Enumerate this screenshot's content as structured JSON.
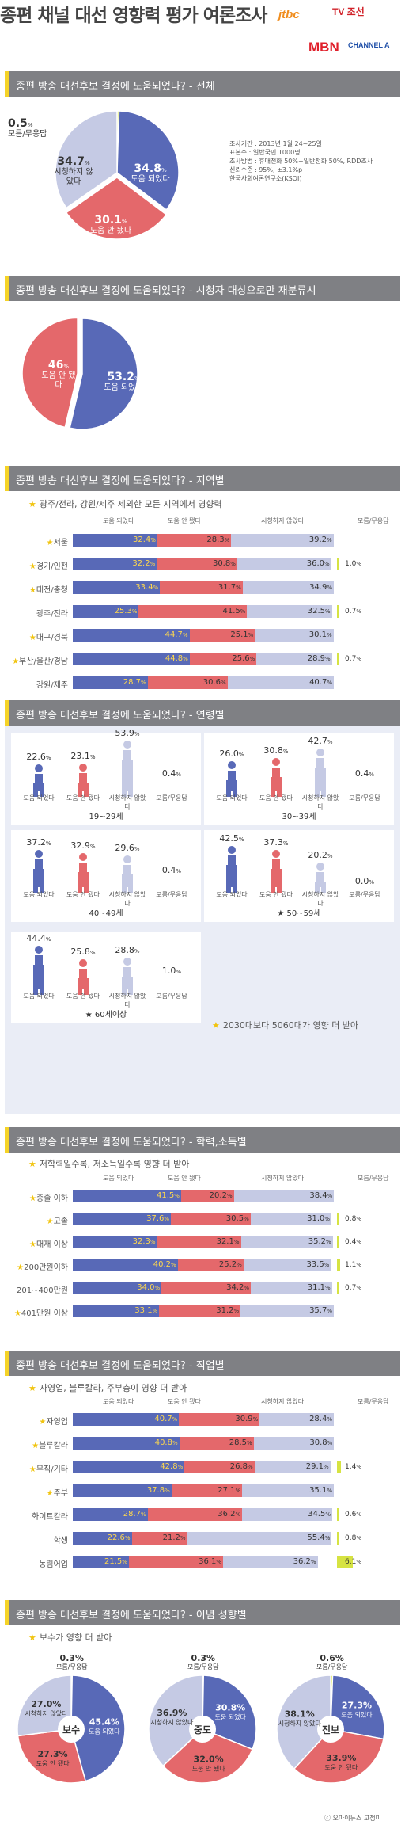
{
  "title": "종편 채널 대선 영향력 평가 여론조사",
  "logos": [
    "jtbc",
    "TV 조선",
    "MBN",
    "CHANNEL A"
  ],
  "colors": {
    "helped": "#5869b7",
    "not_helped": "#e4686b",
    "not_watched": "#c5cae4",
    "dont_know": "#d6e342",
    "star": "#f1c40f"
  },
  "survey_info": [
    "조사기간 : 2013년 1월 24~25일",
    "표본수 : 일반국민 1000명",
    "조사방법 : 휴대전화 50%+일반전화 50%, RDD조사",
    "신뢰수준 : 95%, ±3.1%p",
    "한국사회여론연구소(KSOI)"
  ],
  "legend_headers": [
    "도움 되었다",
    "도움 안 됐다",
    "시청하지 않았다",
    "모름/무응답"
  ],
  "credit": "ⓒ 오마이뉴스 고정미",
  "sections": [
    "종편 방송 대선후보 결정에 도움되었다? - 전체",
    "종편 방송 대선후보 결정에 도움되었다? - 시청자 대상으로만 재분류시",
    "종편 방송 대선후보 결정에 도움되었다? - 지역별",
    "종편 방송 대선후보 결정에 도움되었다? - 연령별",
    "종편 방송 대선후보 결정에 도움되었다? - 학력,소득별",
    "종편 방송 대선후보 결정에 도움되었다? - 직업별",
    "종편 방송 대선후보 결정에 도움되었다? - 이념 성향별"
  ],
  "notes": {
    "region": "광주/전라, 강원/제주 제외한 모든 지역에서 영향력",
    "age": "2030대보다 5060대가 영향 더 받아",
    "edu": "저학력일수록, 저소득일수록 영향 더 받아",
    "job": "자영업, 블루칼라, 주부층이 영향 더 받아",
    "ideology": "보수가 영향 더 받아"
  },
  "chart_data": [
    {
      "type": "pie",
      "title": "종편 방송 대선후보 결정에 도움되었다? - 전체",
      "categories": [
        "도움 되었다",
        "도움 안 됐다",
        "시청하지 않았다",
        "모름/무응답"
      ],
      "values": [
        34.8,
        30.1,
        34.7,
        0.5
      ]
    },
    {
      "type": "pie",
      "title": "종편 방송 대선후보 결정에 도움되었다? - 시청자 대상으로만 재분류시",
      "categories": [
        "도움 되었다",
        "도움 안 됐다"
      ],
      "values": [
        53.2,
        46.0
      ]
    },
    {
      "type": "bar",
      "stacked": true,
      "title": "종편 방송 대선후보 결정에 도움되었다? - 지역별",
      "categories": [
        "서울",
        "경기/인천",
        "대전/충청",
        "광주/전라",
        "대구/경북",
        "부산/울산/경남",
        "강원/제주"
      ],
      "starred": [
        true,
        true,
        true,
        false,
        true,
        true,
        false
      ],
      "series": [
        {
          "name": "도움 되었다",
          "values": [
            32.4,
            32.2,
            33.4,
            25.3,
            44.7,
            44.8,
            28.7
          ]
        },
        {
          "name": "도움 안 됐다",
          "values": [
            28.3,
            30.8,
            31.7,
            41.5,
            25.1,
            25.6,
            30.6
          ]
        },
        {
          "name": "시청하지 않았다",
          "values": [
            39.2,
            36.0,
            34.9,
            32.5,
            30.1,
            28.9,
            40.7
          ]
        },
        {
          "name": "모름/무응답",
          "values": [
            0,
            1.0,
            0,
            0.7,
            0,
            0.7,
            0
          ]
        }
      ]
    },
    {
      "type": "bar",
      "title": "종편 방송 대선후보 결정에 도움되었다? - 연령별",
      "categories": [
        "도움 되었다",
        "도움 안 됐다",
        "시청하지 않았다",
        "모름/무응답"
      ],
      "groups": [
        {
          "name": "19~29세",
          "star": false,
          "values": [
            22.6,
            23.1,
            53.9,
            0.4
          ]
        },
        {
          "name": "30~39세",
          "star": false,
          "values": [
            26.0,
            30.8,
            42.7,
            0.4
          ]
        },
        {
          "name": "40~49세",
          "star": false,
          "values": [
            37.2,
            32.9,
            29.6,
            0.4
          ]
        },
        {
          "name": "50~59세",
          "star": true,
          "values": [
            42.5,
            37.3,
            20.2,
            0
          ]
        },
        {
          "name": "60세이상",
          "star": true,
          "values": [
            44.4,
            25.8,
            28.8,
            1.0
          ]
        }
      ]
    },
    {
      "type": "bar",
      "stacked": true,
      "title": "종편 방송 대선후보 결정에 도움되었다? - 학력,소득별",
      "categories": [
        "중졸 이하",
        "고졸",
        "대재 이상",
        "200만원이하",
        "201~400만원",
        "401만원 이상"
      ],
      "starred": [
        true,
        true,
        true,
        true,
        false,
        true
      ],
      "series": [
        {
          "name": "도움 되었다",
          "values": [
            41.5,
            37.6,
            32.3,
            40.2,
            34.0,
            33.1
          ]
        },
        {
          "name": "도움 안 됐다",
          "values": [
            20.2,
            30.5,
            32.1,
            25.2,
            34.2,
            31.2
          ]
        },
        {
          "name": "시청하지 않았다",
          "values": [
            38.4,
            31.0,
            35.2,
            33.5,
            31.1,
            35.7
          ]
        },
        {
          "name": "모름/무응답",
          "values": [
            0,
            0.8,
            0.4,
            1.1,
            0.7,
            0
          ]
        }
      ]
    },
    {
      "type": "bar",
      "stacked": true,
      "title": "종편 방송 대선후보 결정에 도움되었다? - 직업별",
      "categories": [
        "자영업",
        "블루칼라",
        "무직/기타",
        "주부",
        "화이트칼라",
        "학생",
        "농림어업"
      ],
      "starred": [
        true,
        true,
        true,
        true,
        false,
        false,
        false
      ],
      "series": [
        {
          "name": "도움 되었다",
          "values": [
            40.7,
            40.8,
            42.8,
            37.8,
            28.7,
            22.6,
            21.5
          ]
        },
        {
          "name": "도움 안 됐다",
          "values": [
            30.9,
            28.5,
            26.8,
            27.1,
            36.2,
            21.2,
            36.1
          ]
        },
        {
          "name": "시청하지 않았다",
          "values": [
            28.4,
            30.8,
            29.1,
            35.1,
            34.5,
            55.4,
            36.2
          ]
        },
        {
          "name": "모름/무응답",
          "values": [
            0,
            0,
            1.4,
            0,
            0.6,
            0.8,
            6.1
          ]
        }
      ]
    },
    {
      "type": "pie",
      "title": "종편 방송 대선후보 결정에 도움되었다? - 이념 성향별",
      "categories": [
        "도움 되었다",
        "도움 안 됐다",
        "시청하지 않았다",
        "모름/무응답"
      ],
      "groups": [
        {
          "name": "보수",
          "values": [
            45.4,
            27.3,
            27.0,
            0.3
          ]
        },
        {
          "name": "중도",
          "values": [
            30.8,
            32.0,
            36.9,
            0.3
          ]
        },
        {
          "name": "진보",
          "values": [
            27.3,
            33.9,
            38.1,
            0.6
          ]
        }
      ]
    }
  ]
}
